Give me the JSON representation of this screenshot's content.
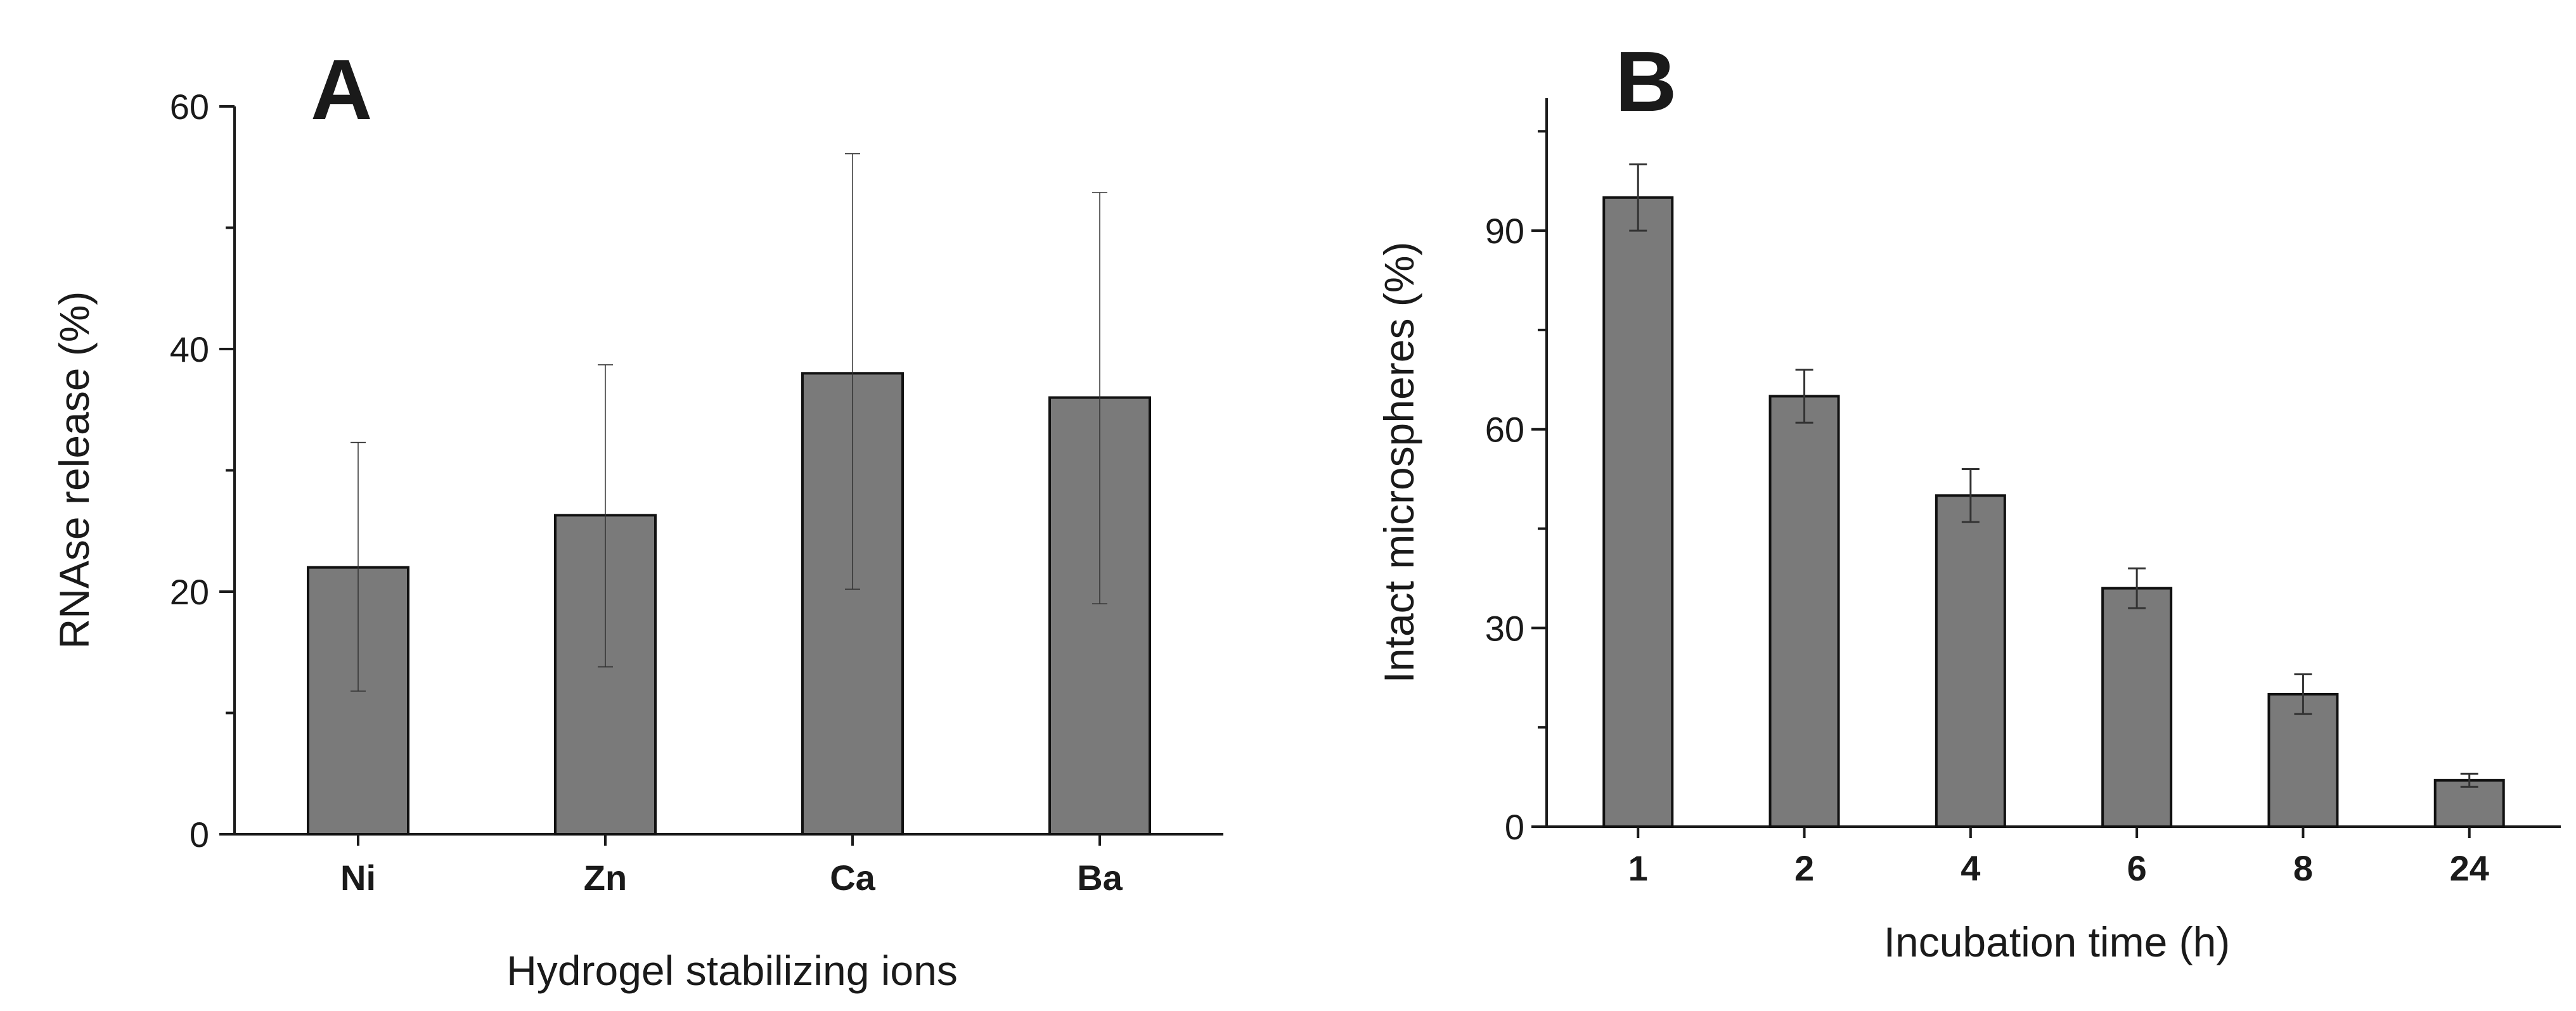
{
  "colors": {
    "bar": "#7a7a7a",
    "axis": "#1a1a1a"
  },
  "chart_data": [
    {
      "panel": "A",
      "type": "bar",
      "title": "",
      "xlabel": "Hydrogel stabilizing ions",
      "ylabel": "RNAse release (%)",
      "ylim": [
        0,
        60
      ],
      "yticks": [
        0,
        20,
        40,
        60
      ],
      "yminor_step": 10,
      "categories": [
        "Ni",
        "Zn",
        "Ca",
        "Ba"
      ],
      "values": [
        22,
        26.3,
        38,
        36
      ],
      "err_low": [
        11.8,
        13.8,
        20.2,
        19
      ],
      "err_high": [
        32.3,
        38.7,
        56.1,
        52.9
      ],
      "grid": false,
      "legend": "none"
    },
    {
      "panel": "B",
      "type": "bar",
      "title": "",
      "xlabel": "Incubation time (h)",
      "ylabel": "Intact microspheres (%)",
      "ylim": [
        0,
        110
      ],
      "yticks": [
        0,
        30,
        60,
        90
      ],
      "yminor_step": 15,
      "categories": [
        "1",
        "2",
        "4",
        "6",
        "8",
        "24"
      ],
      "values": [
        95,
        65,
        50,
        36,
        20,
        7
      ],
      "err_low": [
        90,
        61,
        46,
        33,
        17,
        6
      ],
      "err_high": [
        100,
        69,
        54,
        39,
        23,
        8
      ],
      "grid": false,
      "legend": "none"
    }
  ]
}
